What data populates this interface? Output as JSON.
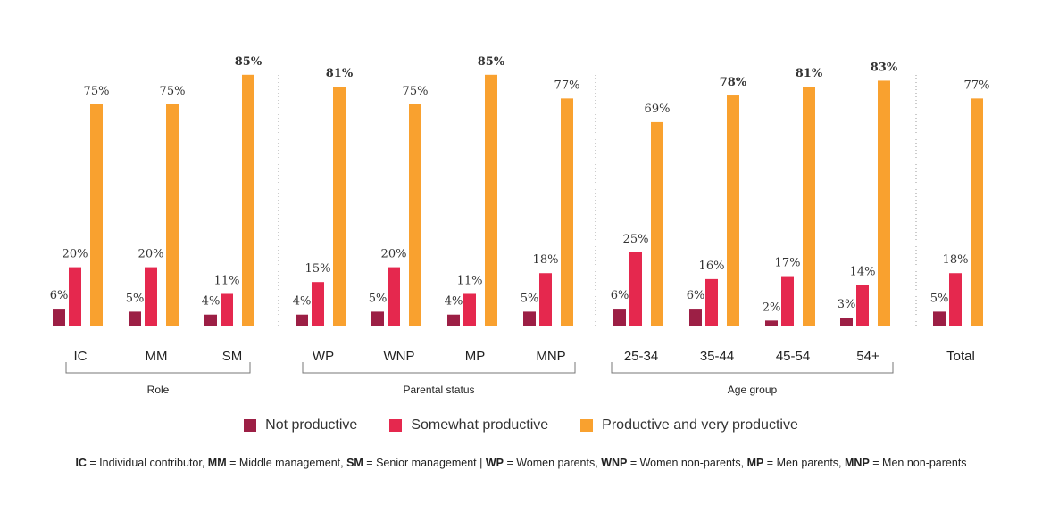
{
  "chart_data": {
    "type": "bar",
    "series": [
      {
        "name": "Not productive",
        "color": "#9c1f45",
        "values": [
          6,
          5,
          4,
          4,
          5,
          4,
          5,
          6,
          6,
          2,
          3,
          5
        ]
      },
      {
        "name": "Somewhat productive",
        "color": "#e5284e",
        "values": [
          20,
          20,
          11,
          15,
          20,
          11,
          18,
          25,
          16,
          17,
          14,
          18
        ]
      },
      {
        "name": "Productive and very productive",
        "color": "#f9a12f",
        "values": [
          75,
          75,
          85,
          81,
          75,
          85,
          77,
          69,
          78,
          81,
          83,
          77
        ]
      }
    ],
    "categories": [
      "IC",
      "MM",
      "SM",
      "WP",
      "WNP",
      "MP",
      "MNP",
      "25-34",
      "35-44",
      "45-54",
      "54+",
      "Total"
    ],
    "groups": [
      {
        "label": "Role",
        "categories": [
          "IC",
          "MM",
          "SM"
        ]
      },
      {
        "label": "Parental status",
        "categories": [
          "WP",
          "WNP",
          "MP",
          "MNP"
        ]
      },
      {
        "label": "Age group",
        "categories": [
          "25-34",
          "35-44",
          "45-54",
          "54+"
        ]
      },
      {
        "label": "",
        "categories": [
          "Total"
        ]
      }
    ],
    "bold_labels": [
      {
        "series": 2,
        "category": "SM"
      },
      {
        "series": 2,
        "category": "WP"
      },
      {
        "series": 2,
        "category": "MP"
      },
      {
        "series": 2,
        "category": "35-44"
      },
      {
        "series": 2,
        "category": "45-54"
      },
      {
        "series": 2,
        "category": "54+"
      }
    ],
    "value_suffix": "%",
    "ylim": [
      0,
      100
    ],
    "title": "",
    "xlabel": "",
    "ylabel": ""
  },
  "legend": {
    "not_productive": "Not productive",
    "somewhat_productive": "Somewhat productive",
    "productive": "Productive and very productive"
  },
  "footnote": {
    "ic_abbr": "IC",
    "ic_text": " = Individual contributor,  ",
    "mm_abbr": "MM",
    "mm_text": " = Middle management, ",
    "sm_abbr": "SM",
    "sm_text": " = Senior management | ",
    "wp_abbr": "WP",
    "wp_text": " = Women parents, ",
    "wnp_abbr": "WNP",
    "wnp_text": " = Women non-parents, ",
    "mp_abbr": "MP",
    "mp_text": " = Men parents, ",
    "mnp_abbr": "MNP",
    "mnp_text": " = Men non-parents"
  }
}
